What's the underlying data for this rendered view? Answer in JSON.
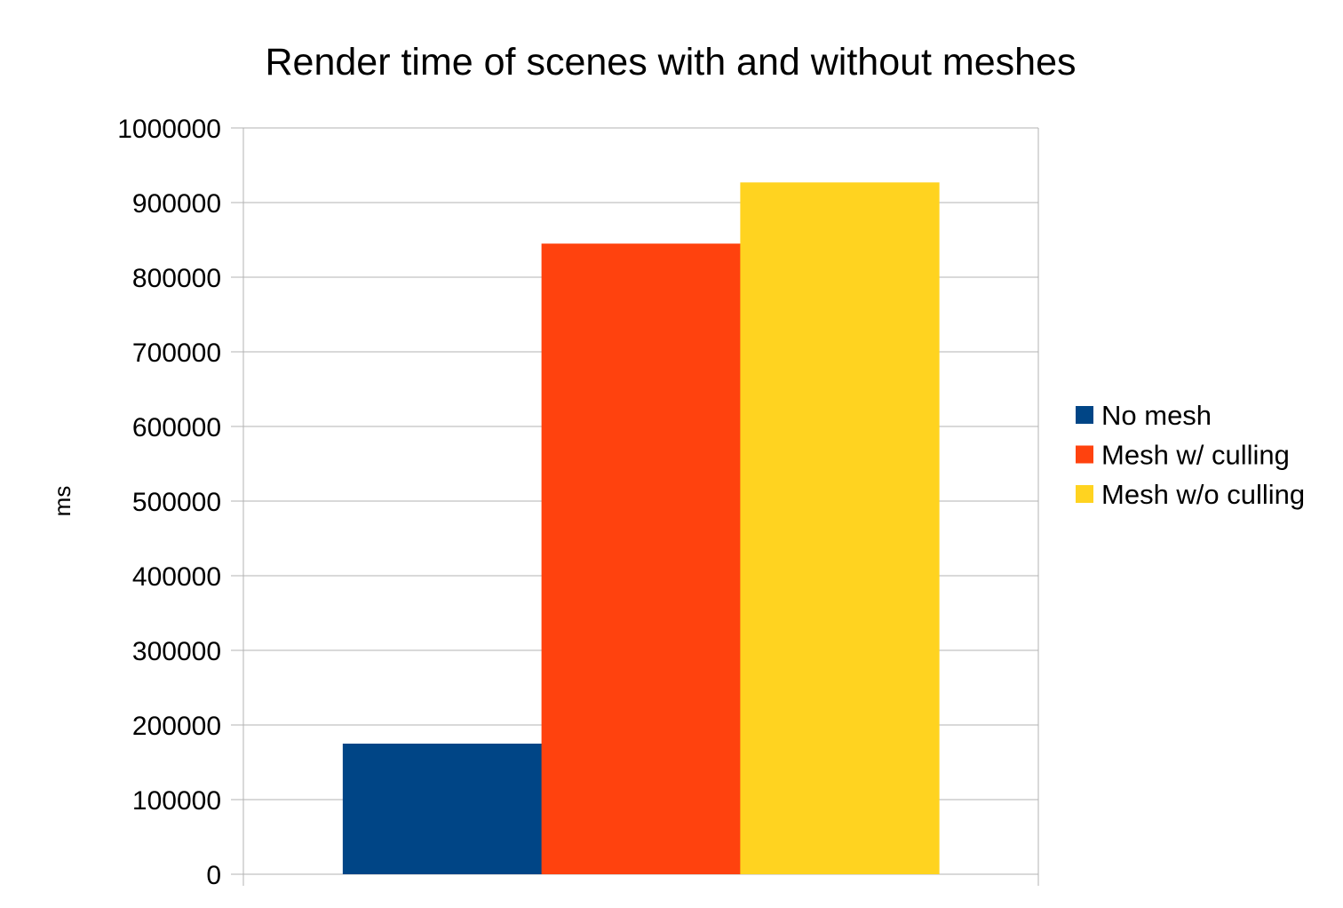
{
  "chart_data": {
    "type": "bar",
    "title": "Render time of scenes with and without meshes",
    "xlabel": "",
    "ylabel": "ms",
    "categories": [
      ""
    ],
    "ylim": [
      0,
      1000000
    ],
    "yticks": [
      "0",
      "100000",
      "200000",
      "300000",
      "400000",
      "500000",
      "600000",
      "700000",
      "800000",
      "900000",
      "1000000"
    ],
    "grid": true,
    "legend_position": "right",
    "series": [
      {
        "name": "No mesh",
        "values": [
          175000
        ],
        "color": "#004586"
      },
      {
        "name": "Mesh w/ culling",
        "values": [
          845000
        ],
        "color": "#ff420e"
      },
      {
        "name": "Mesh w/o culling",
        "values": [
          927000
        ],
        "color": "#ffd320"
      }
    ]
  }
}
